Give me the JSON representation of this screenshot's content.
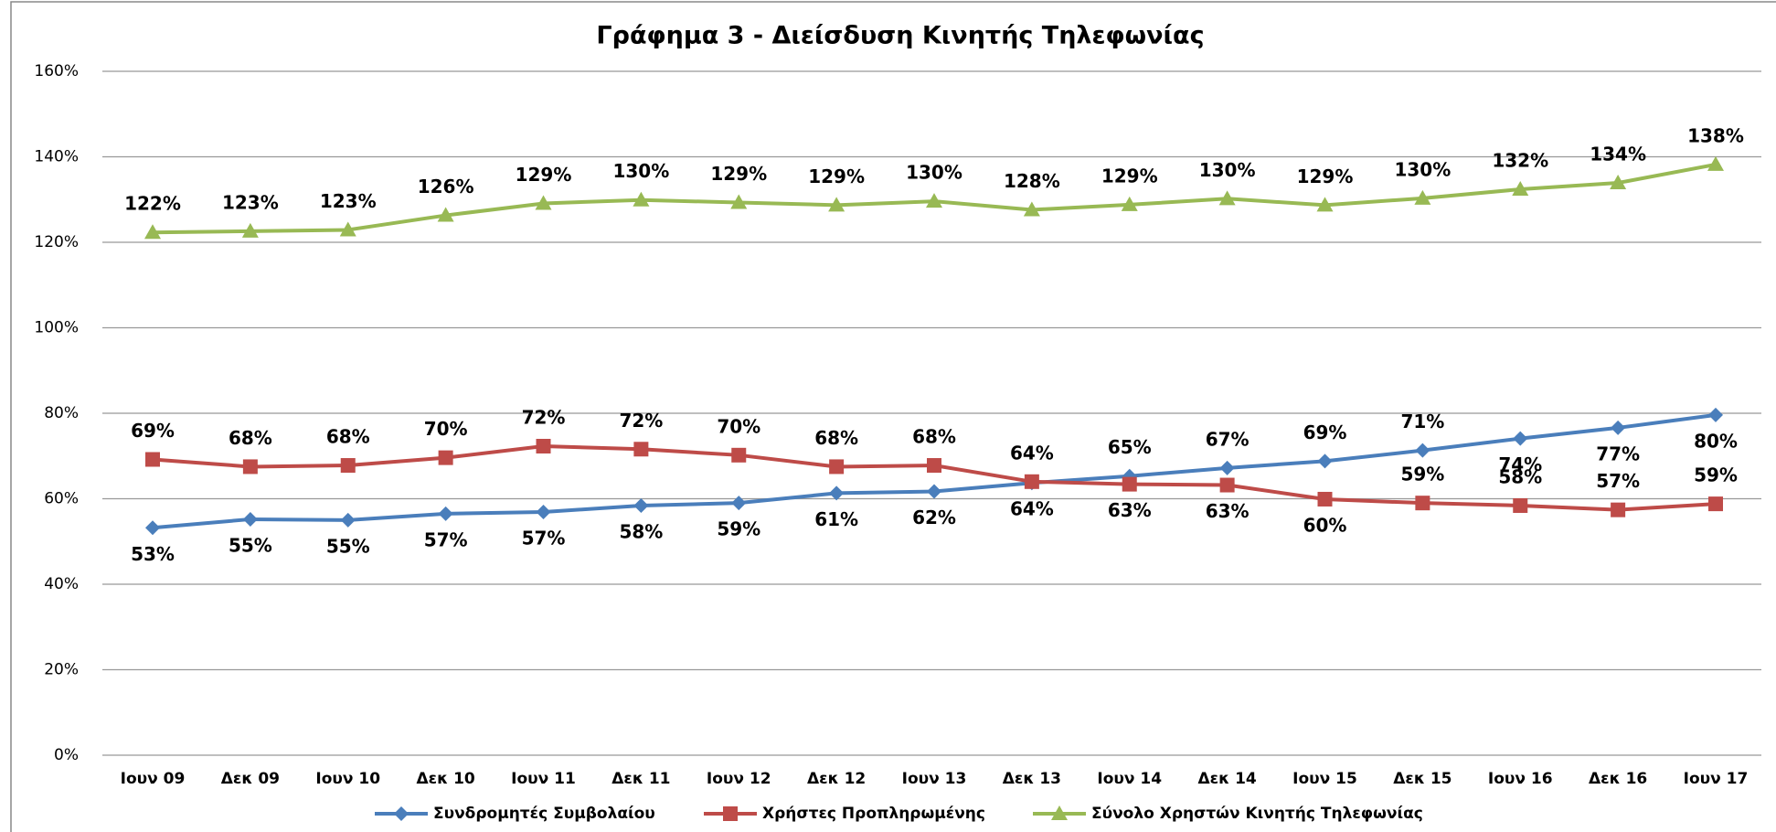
{
  "chart_data": {
    "type": "line",
    "title": "Γράφημα 3 - Διείσδυση Κινητής Τηλεφωνίας",
    "categories": [
      "Ιουν 09",
      "Δεκ 09",
      "Ιουν 10",
      "Δεκ 10",
      "Ιουν 11",
      "Δεκ 11",
      "Ιουν 12",
      "Δεκ 12",
      "Ιουν 13",
      "Δεκ 13",
      "Ιουν 14",
      "Δεκ 14",
      "Ιουν 15",
      "Δεκ 15",
      "Ιουν 16",
      "Δεκ 16",
      "Ιουν 17"
    ],
    "series": [
      {
        "name": "Συνδρομητές Συμβολαίου",
        "color": "#4a7ebb",
        "marker": "diamond",
        "values": [
          53.2,
          55.2,
          55.0,
          56.5,
          56.9,
          58.4,
          59.0,
          61.3,
          61.7,
          63.7,
          65.3,
          67.2,
          68.8,
          71.3,
          74.1,
          76.6,
          79.6
        ],
        "value_labels": [
          "53%",
          "55%",
          "55%",
          "57%",
          "57%",
          "58%",
          "59%",
          "61%",
          "62%",
          "64%",
          "65%",
          "67%",
          "69%",
          "71%",
          "74%",
          "77%",
          "80%"
        ]
      },
      {
        "name": "Χρήστες Προπληρωμένης",
        "color": "#be4b48",
        "marker": "square",
        "values": [
          69.2,
          67.5,
          67.8,
          69.6,
          72.3,
          71.6,
          70.2,
          67.5,
          67.8,
          64.0,
          63.4,
          63.2,
          59.9,
          59.0,
          58.4,
          57.4,
          58.8
        ],
        "value_labels": [
          "69%",
          "68%",
          "68%",
          "70%",
          "72%",
          "72%",
          "70%",
          "68%",
          "68%",
          "64%",
          "63%",
          "63%",
          "60%",
          "59%",
          "58%",
          "57%",
          "59%"
        ]
      },
      {
        "name": "Σύνολο Χρηστών Κινητής Τηλεφωνίας",
        "color": "#98b954",
        "marker": "triangle",
        "values": [
          122.3,
          122.6,
          122.9,
          126.3,
          129.1,
          129.9,
          129.3,
          128.7,
          129.6,
          127.6,
          128.8,
          130.2,
          128.7,
          130.3,
          132.4,
          133.9,
          138.2
        ],
        "value_labels": [
          "122%",
          "123%",
          "123%",
          "126%",
          "129%",
          "130%",
          "129%",
          "129%",
          "130%",
          "128%",
          "129%",
          "130%",
          "129%",
          "130%",
          "132%",
          "134%",
          "138%"
        ]
      }
    ],
    "ylim": [
      0,
      160
    ],
    "yticks": [
      {
        "value": 0,
        "label": "0%"
      },
      {
        "value": 20,
        "label": "20%"
      },
      {
        "value": 40,
        "label": "40%"
      },
      {
        "value": 60,
        "label": "60%"
      },
      {
        "value": 80,
        "label": "80%"
      },
      {
        "value": 100,
        "label": "100%"
      },
      {
        "value": 120,
        "label": "120%"
      },
      {
        "value": 140,
        "label": "140%"
      },
      {
        "value": 160,
        "label": "160%"
      }
    ],
    "grid": true,
    "legend": "bottom"
  }
}
